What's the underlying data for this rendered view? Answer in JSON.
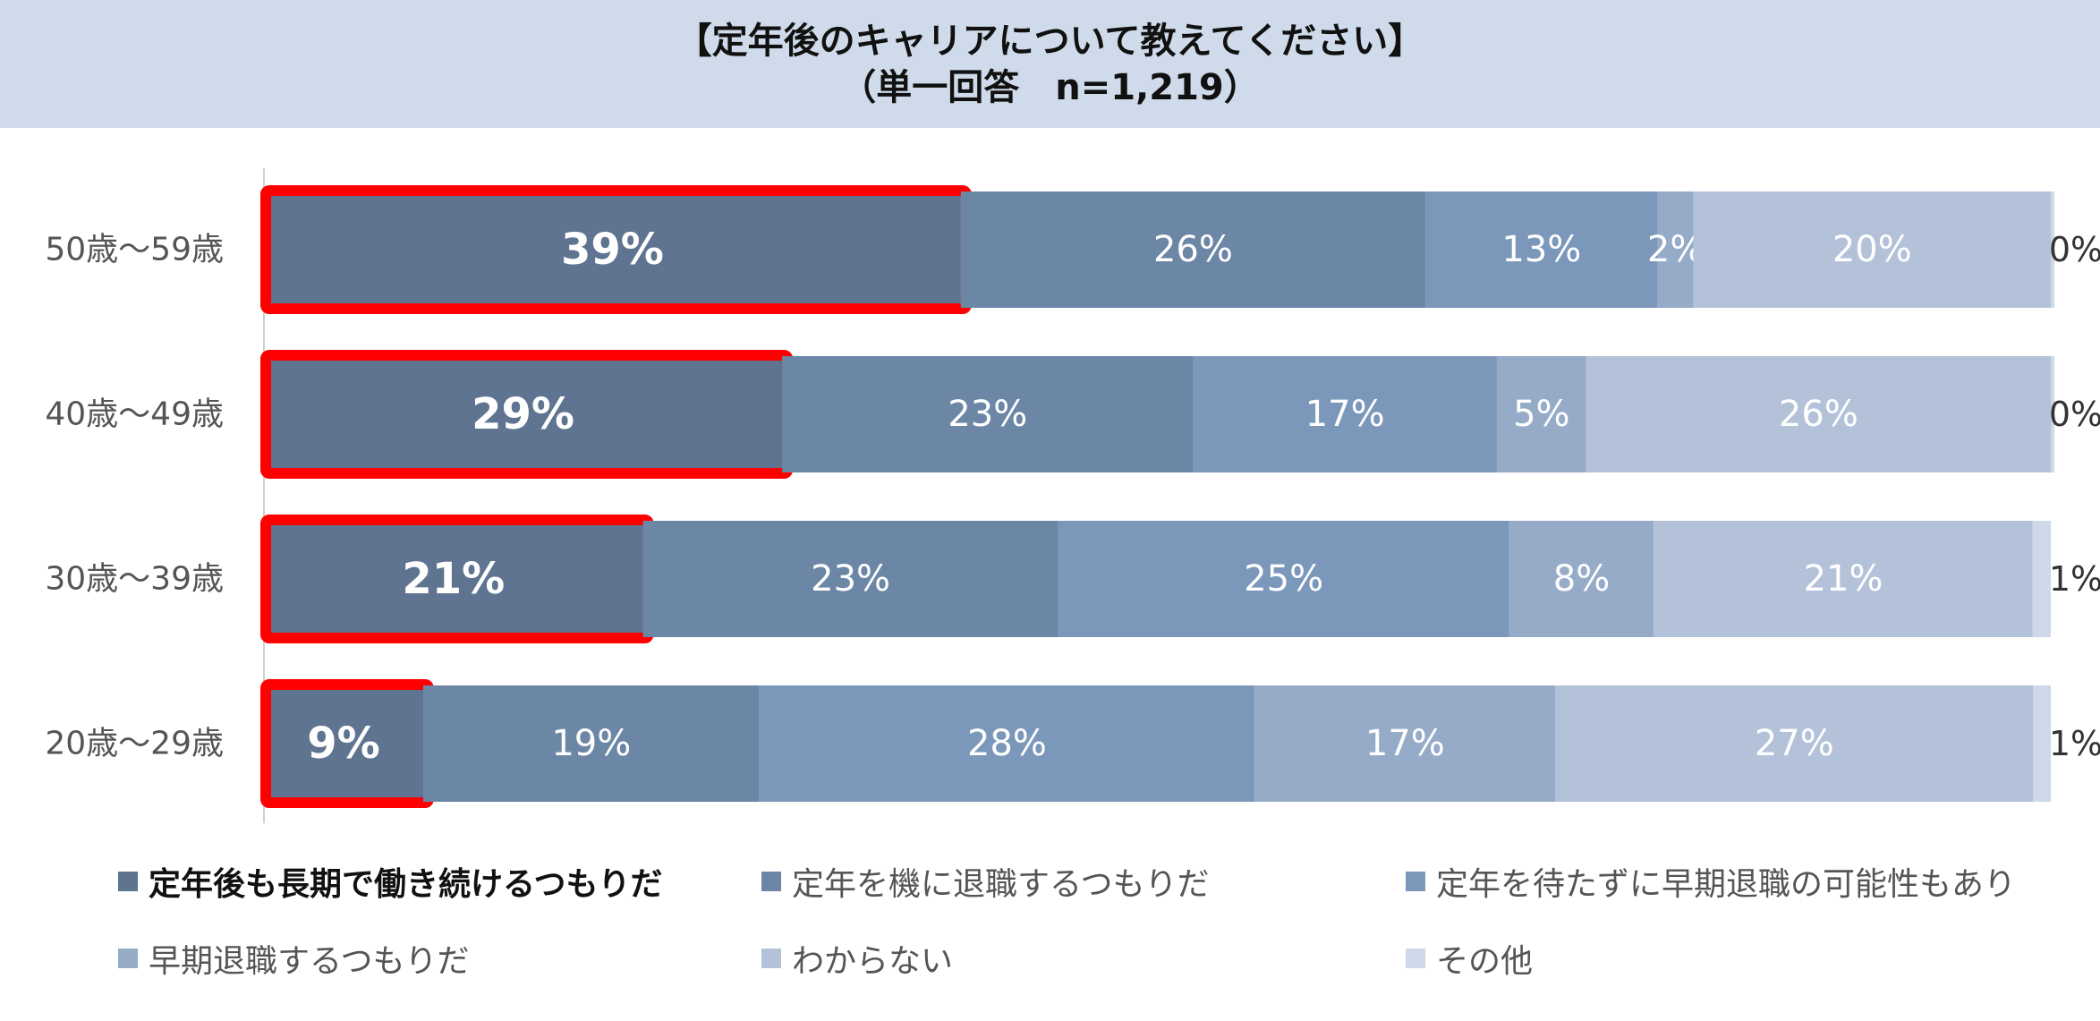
{
  "chart_data": {
    "type": "bar",
    "orientation": "horizontal",
    "stacked": true,
    "title": "【定年後のキャリアについて教えてください】",
    "subtitle": "（単一回答　n=1,219）",
    "categories": [
      "50歳～59歳",
      "40歳～49歳",
      "30歳～39歳",
      "20歳～29歳"
    ],
    "series": [
      {
        "name": "定年後も長期で働き続けるつもりだ",
        "values": [
          39,
          29,
          21,
          9
        ],
        "labels": [
          "39%",
          "29%",
          "21%",
          "9%"
        ],
        "color": "#5e7490"
      },
      {
        "name": "定年を機に退職するつもりだ",
        "values": [
          26,
          23,
          23,
          19
        ],
        "labels": [
          "26%",
          "23%",
          "23%",
          "19%"
        ],
        "color": "#6c87a5"
      },
      {
        "name": "定年を待たずに早期退職の可能性もあり",
        "values": [
          13,
          17,
          25,
          28
        ],
        "labels": [
          "13%",
          "17%",
          "25%",
          "28%"
        ],
        "color": "#7b97ba"
      },
      {
        "name": "早期退職するつもりだ",
        "values": [
          2,
          5,
          8,
          17
        ],
        "labels": [
          "2%",
          "5%",
          "8%",
          "17%"
        ],
        "color": "#95abc8"
      },
      {
        "name": "わからない",
        "values": [
          20,
          26,
          21,
          27
        ],
        "labels": [
          "20%",
          "26%",
          "21%",
          "27%"
        ],
        "color": "#b3c2d9"
      },
      {
        "name": "その他",
        "values": [
          0,
          0,
          1,
          1
        ],
        "labels": [
          "0%",
          "0%",
          "1%",
          "1%"
        ],
        "color": "#cdd8e8"
      }
    ],
    "highlight_series": 0,
    "highlight_color": "#ff0000",
    "xlim": [
      0,
      100
    ],
    "grid": false,
    "legend_position": "bottom"
  }
}
